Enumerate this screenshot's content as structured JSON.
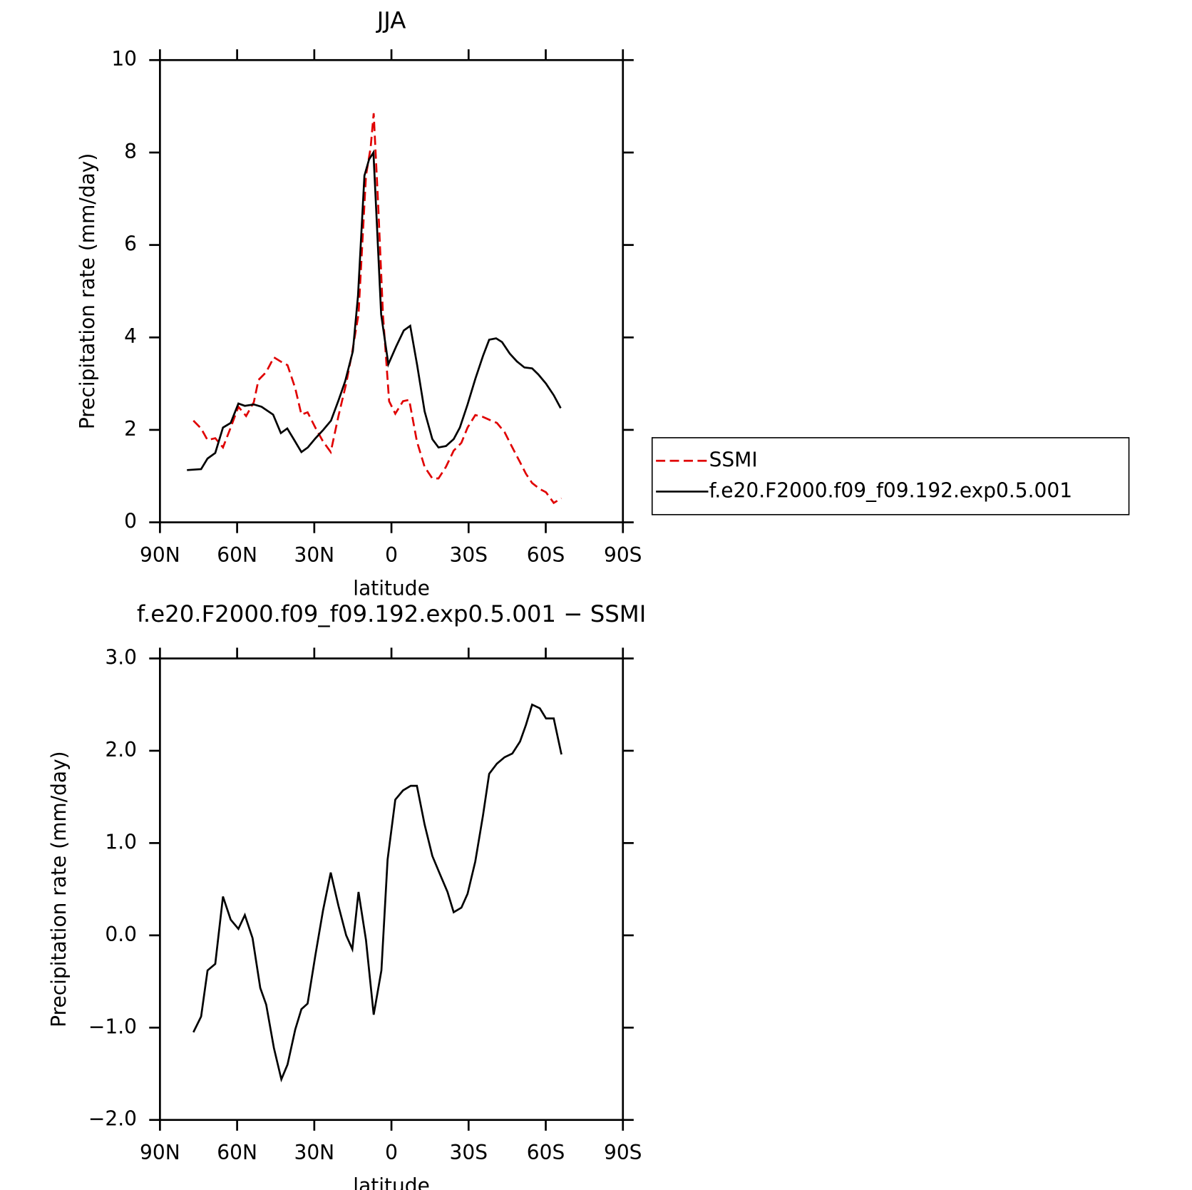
{
  "chart_data": [
    {
      "type": "line",
      "title": "JJA",
      "xlabel": "latitude",
      "ylabel": "Precipitation rate (mm/day)",
      "xlim": [
        90,
        -90
      ],
      "xticks": [
        {
          "value": 90,
          "label": "90N"
        },
        {
          "value": 60,
          "label": "60N"
        },
        {
          "value": 30,
          "label": "30N"
        },
        0,
        {
          "value": -30,
          "label": "30S"
        },
        {
          "value": -60,
          "label": "60S"
        },
        {
          "value": -90,
          "label": "90S"
        }
      ],
      "ylim": [
        0,
        10
      ],
      "yticks": [
        0,
        2,
        4,
        6,
        8,
        10
      ],
      "legend": "right",
      "series": [
        {
          "name": "SSMI",
          "color": "#e00000",
          "dashed": true,
          "x": [
            77,
            74,
            71.5,
            68.5,
            65.5,
            62.5,
            59.5,
            56.5,
            53.5,
            51.7,
            48.7,
            45.7,
            42.8,
            40.4,
            37.4,
            35,
            32.6,
            29.6,
            26.6,
            23.6,
            20.6,
            17.6,
            15.2,
            12.8,
            9.9,
            8.1,
            6.9,
            5.1,
            3.3,
            0.9,
            -1.5,
            -4.5,
            -6.9,
            -9.9,
            -12.9,
            -15.9,
            -18.3,
            -21.2,
            -24.2,
            -27.2,
            -29.6,
            -32.6,
            -35.6,
            -38,
            -41,
            -44,
            -47,
            -50,
            -52.3,
            -54.7,
            -57.7,
            -60.1,
            -63.1,
            -66.1
          ],
          "values": [
            2.2,
            2.03,
            1.78,
            1.82,
            1.62,
            2.05,
            2.5,
            2.3,
            2.6,
            3.08,
            3.25,
            3.57,
            3.47,
            3.4,
            2.9,
            2.33,
            2.38,
            2.05,
            1.75,
            1.52,
            2.3,
            3.0,
            3.7,
            4.5,
            7.5,
            8.1,
            8.85,
            6.8,
            4.5,
            2.62,
            2.35,
            2.62,
            2.65,
            1.75,
            1.2,
            0.95,
            0.95,
            1.2,
            1.55,
            1.72,
            2.05,
            2.32,
            2.28,
            2.22,
            2.15,
            1.95,
            1.62,
            1.3,
            1.05,
            0.85,
            0.72,
            0.65,
            0.42,
            0.52
          ]
        },
        {
          "name": "f.e20.F2000.f09_f09.192.exp0.5.001",
          "color": "#000000",
          "dashed": false,
          "x": [
            79.5,
            74,
            71.5,
            68.5,
            65.5,
            62.5,
            59.5,
            57,
            53.5,
            50.5,
            46,
            43,
            40.5,
            38,
            35,
            32.5,
            29.5,
            26.5,
            23.5,
            20.5,
            18,
            15,
            13,
            10.5,
            8.7,
            7,
            5.7,
            4,
            1.2,
            -1.8,
            -4.8,
            -7.3,
            -10,
            -12.9,
            -15.9,
            -18.3,
            -21.2,
            -24.2,
            -26.6,
            -29.6,
            -32.6,
            -35.6,
            -38,
            -40.7,
            -43,
            -46,
            -48.8,
            -51.7,
            -54.7,
            -57.1,
            -60.1,
            -63.1,
            -65.8
          ],
          "values": [
            1.13,
            1.15,
            1.38,
            1.5,
            2.05,
            2.15,
            2.57,
            2.52,
            2.55,
            2.5,
            2.33,
            1.93,
            2.03,
            1.8,
            1.52,
            1.62,
            1.82,
            2.0,
            2.2,
            2.65,
            3.05,
            3.7,
            4.9,
            7.5,
            7.85,
            8.0,
            6.5,
            4.5,
            3.42,
            3.8,
            4.15,
            4.25,
            3.4,
            2.4,
            1.8,
            1.62,
            1.65,
            1.8,
            2.05,
            2.55,
            3.1,
            3.6,
            3.95,
            3.98,
            3.9,
            3.65,
            3.48,
            3.35,
            3.33,
            3.2,
            3.0,
            2.75,
            2.47
          ]
        }
      ]
    },
    {
      "type": "line",
      "title": "f.e20.F2000.f09_f09.192.exp0.5.001 − SSMI",
      "xlabel": "latitude",
      "ylabel": "Precipitation rate (mm/day)",
      "xlim": [
        90,
        -90
      ],
      "xticks": [
        {
          "value": 90,
          "label": "90N"
        },
        {
          "value": 60,
          "label": "60N"
        },
        {
          "value": 30,
          "label": "30N"
        },
        0,
        {
          "value": -30,
          "label": "30S"
        },
        {
          "value": -60,
          "label": "60S"
        },
        {
          "value": -90,
          "label": "90S"
        }
      ],
      "ylim": [
        -2,
        3
      ],
      "yticks": [
        {
          "value": -2,
          "label": "−2.0"
        },
        {
          "value": -1,
          "label": "−1.0"
        },
        {
          "value": 0,
          "label": "0.0"
        },
        {
          "value": 1,
          "label": "1.0"
        },
        {
          "value": 2,
          "label": "2.0"
        },
        {
          "value": 3,
          "label": "3.0"
        }
      ],
      "series": [
        {
          "color": "#000000",
          "dashed": false,
          "x": [
            77,
            74,
            71.5,
            68.5,
            65.5,
            62.5,
            59.5,
            57,
            54,
            51,
            48.7,
            45.7,
            42.8,
            40.4,
            37.4,
            35,
            32.6,
            29.6,
            26.6,
            23.6,
            20.6,
            17.6,
            15.2,
            12.8,
            9.9,
            6.9,
            3.9,
            1.5,
            -1.5,
            -4.5,
            -7.5,
            -9.9,
            -12.9,
            -15.9,
            -18.9,
            -21.8,
            -24.2,
            -27.2,
            -29.6,
            -32.6,
            -35.6,
            -38,
            -41,
            -44,
            -47,
            -50,
            -52.3,
            -54.7,
            -57.7,
            -60.1,
            -63.1,
            -66.1
          ],
          "values": [
            -1.05,
            -0.88,
            -0.38,
            -0.31,
            0.42,
            0.17,
            0.07,
            0.22,
            -0.03,
            -0.57,
            -0.75,
            -1.22,
            -1.56,
            -1.4,
            -1.02,
            -0.8,
            -0.74,
            -0.22,
            0.27,
            0.68,
            0.32,
            0.0,
            -0.15,
            0.47,
            -0.05,
            -0.86,
            -0.38,
            0.82,
            1.47,
            1.57,
            1.62,
            1.62,
            1.2,
            0.86,
            0.66,
            0.47,
            0.25,
            0.3,
            0.45,
            0.8,
            1.3,
            1.75,
            1.86,
            1.93,
            1.97,
            2.1,
            2.28,
            2.5,
            2.46,
            2.35,
            2.35,
            1.96
          ]
        }
      ]
    }
  ]
}
